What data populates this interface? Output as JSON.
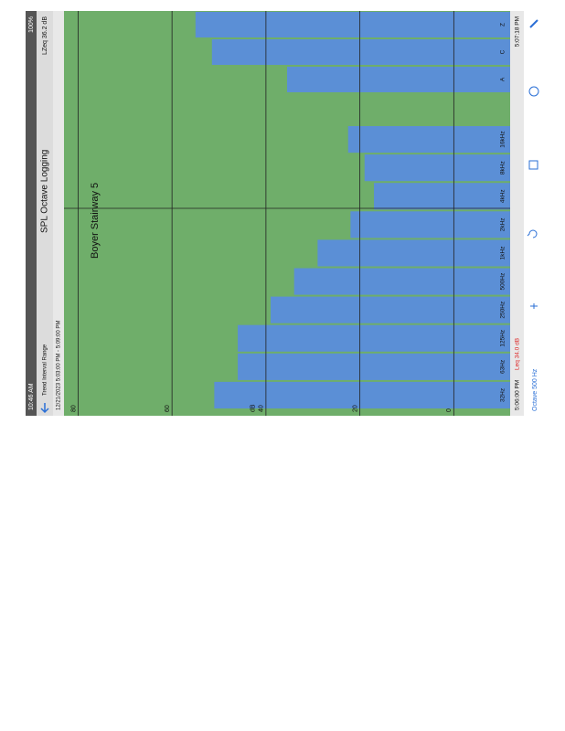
{
  "status": {
    "time": "10:46 AM",
    "battery": "100%"
  },
  "nav": {
    "left": "Trend Interval Range",
    "title": "SPL Octave Logging",
    "right": "LZeq 36.2 dB"
  },
  "range": "12/21/2023 5:03:00 PM - 5:09:00 PM",
  "annotation": "Boyer Stairway 5",
  "footer": {
    "start": "5:06:00 PM",
    "leq": "Leq 34.0 dB",
    "end": "5:07:18 PM"
  },
  "toolbar": {
    "label": "Octave 500 Hz"
  },
  "chart_data": {
    "type": "bar",
    "ylabel": "dB",
    "categories": [
      "32Hz",
      "63Hz",
      "125Hz",
      "250Hz",
      "500Hz",
      "1kHz",
      "2kHz",
      "4kHz",
      "8kHz",
      "16kHz",
      "A",
      "C",
      "Z"
    ],
    "values": [
      51,
      46,
      46,
      39,
      34,
      29,
      22,
      17,
      19,
      22.5,
      35.5,
      51.5,
      55
    ],
    "color": "#5b8fd6",
    "ylim": [
      -12,
      83
    ],
    "yticks": [
      0,
      20,
      40,
      60,
      80
    ],
    "grid": true
  }
}
